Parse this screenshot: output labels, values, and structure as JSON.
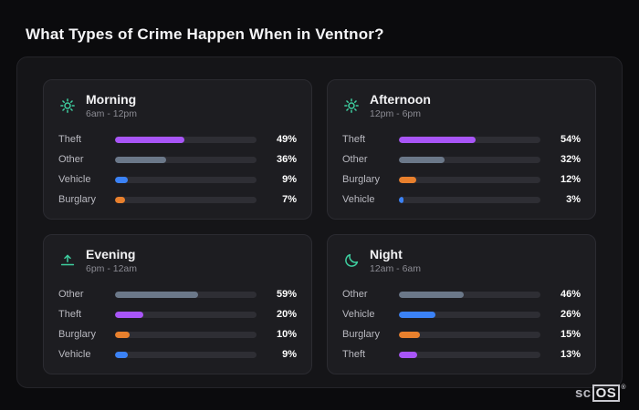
{
  "page": {
    "title": "What Types of Crime Happen When in Ventnor?"
  },
  "colors": {
    "theft": "#a855f7",
    "other": "#6b7889",
    "vehicle": "#3b82f6",
    "burglary": "#e8802d",
    "icon_accent": "#3ecfa0",
    "track": "#2e2e34"
  },
  "footer": {
    "logo_prefix": "sc",
    "logo_box": "OS",
    "registered": "®"
  },
  "chart_data": [
    {
      "type": "bar",
      "title": "Morning",
      "subtitle": "6am - 12pm",
      "icon": "sun-icon",
      "orientation": "horizontal",
      "xlim": [
        0,
        100
      ],
      "categories": [
        "Theft",
        "Other",
        "Vehicle",
        "Burglary"
      ],
      "values": [
        49,
        36,
        9,
        7
      ],
      "rows": [
        {
          "label": "Theft",
          "value": 49,
          "display": "49%",
          "color": "#a855f7"
        },
        {
          "label": "Other",
          "value": 36,
          "display": "36%",
          "color": "#6b7889"
        },
        {
          "label": "Vehicle",
          "value": 9,
          "display": "9%",
          "color": "#3b82f6"
        },
        {
          "label": "Burglary",
          "value": 7,
          "display": "7%",
          "color": "#e8802d"
        }
      ]
    },
    {
      "type": "bar",
      "title": "Afternoon",
      "subtitle": "12pm - 6pm",
      "icon": "sun-icon",
      "orientation": "horizontal",
      "xlim": [
        0,
        100
      ],
      "categories": [
        "Theft",
        "Other",
        "Burglary",
        "Vehicle"
      ],
      "values": [
        54,
        32,
        12,
        3
      ],
      "rows": [
        {
          "label": "Theft",
          "value": 54,
          "display": "54%",
          "color": "#a855f7"
        },
        {
          "label": "Other",
          "value": 32,
          "display": "32%",
          "color": "#6b7889"
        },
        {
          "label": "Burglary",
          "value": 12,
          "display": "12%",
          "color": "#e8802d"
        },
        {
          "label": "Vehicle",
          "value": 3,
          "display": "3%",
          "color": "#3b82f6"
        }
      ]
    },
    {
      "type": "bar",
      "title": "Evening",
      "subtitle": "6pm - 12am",
      "icon": "sunset-icon",
      "orientation": "horizontal",
      "xlim": [
        0,
        100
      ],
      "categories": [
        "Other",
        "Theft",
        "Burglary",
        "Vehicle"
      ],
      "values": [
        59,
        20,
        10,
        9
      ],
      "rows": [
        {
          "label": "Other",
          "value": 59,
          "display": "59%",
          "color": "#6b7889"
        },
        {
          "label": "Theft",
          "value": 20,
          "display": "20%",
          "color": "#a855f7"
        },
        {
          "label": "Burglary",
          "value": 10,
          "display": "10%",
          "color": "#e8802d"
        },
        {
          "label": "Vehicle",
          "value": 9,
          "display": "9%",
          "color": "#3b82f6"
        }
      ]
    },
    {
      "type": "bar",
      "title": "Night",
      "subtitle": "12am - 6am",
      "icon": "moon-icon",
      "orientation": "horizontal",
      "xlim": [
        0,
        100
      ],
      "categories": [
        "Other",
        "Vehicle",
        "Burglary",
        "Theft"
      ],
      "values": [
        46,
        26,
        15,
        13
      ],
      "rows": [
        {
          "label": "Other",
          "value": 46,
          "display": "46%",
          "color": "#6b7889"
        },
        {
          "label": "Vehicle",
          "value": 26,
          "display": "26%",
          "color": "#3b82f6"
        },
        {
          "label": "Burglary",
          "value": 15,
          "display": "15%",
          "color": "#e8802d"
        },
        {
          "label": "Theft",
          "value": 13,
          "display": "13%",
          "color": "#a855f7"
        }
      ]
    }
  ]
}
